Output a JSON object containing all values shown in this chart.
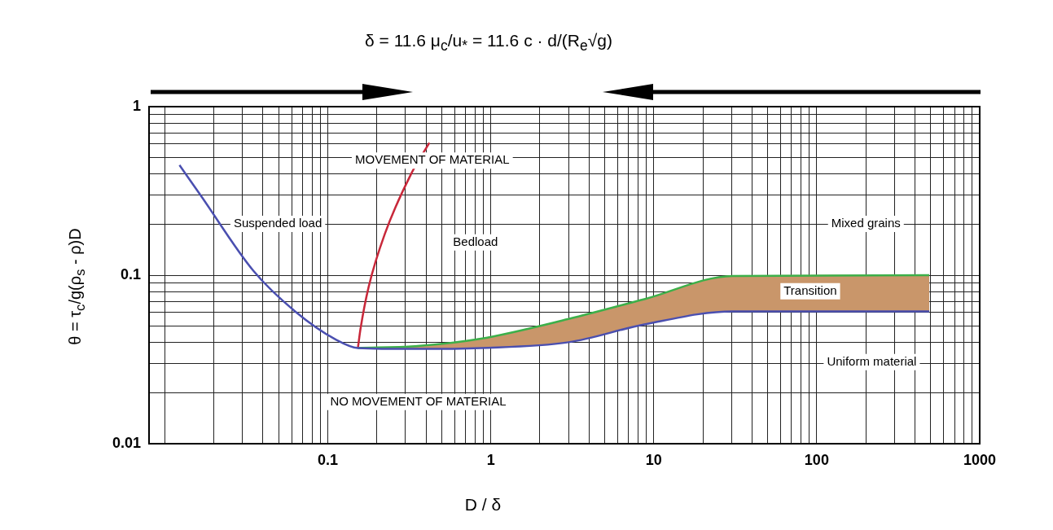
{
  "chart_data": {
    "type": "line",
    "title": "δ = 11.6 μ$_{c}$/u$_{*}$ = 11.6 c · d/(R$_{e}$√g)",
    "xlabel": "D / δ",
    "ylabel": "θ = τ$_{c}$/g(ρ$_{s}$ - ρ)D",
    "log": "xy",
    "grid": true,
    "legend": false,
    "marker": "none",
    "xlim": [
      0.008,
      1000
    ],
    "ylim": [
      0.01,
      1
    ],
    "xticks": [
      {
        "value": 0.01,
        "label": null
      },
      {
        "value": 0.02,
        "label": null
      },
      {
        "value": 0.03,
        "label": null
      },
      {
        "value": 0.04,
        "label": null
      },
      {
        "value": 0.05,
        "label": null
      },
      {
        "value": 0.06,
        "label": null
      },
      {
        "value": 0.07,
        "label": null
      },
      {
        "value": 0.08,
        "label": null
      },
      {
        "value": 0.09,
        "label": null
      },
      0.1,
      {
        "value": 0.2,
        "label": null
      },
      {
        "value": 0.3,
        "label": null
      },
      {
        "value": 0.4,
        "label": null
      },
      {
        "value": 0.5,
        "label": null
      },
      {
        "value": 0.6,
        "label": null
      },
      {
        "value": 0.7,
        "label": null
      },
      {
        "value": 0.8,
        "label": null
      },
      {
        "value": 0.9,
        "label": null
      },
      1,
      {
        "value": 2,
        "label": null
      },
      {
        "value": 3,
        "label": null
      },
      {
        "value": 4,
        "label": null
      },
      {
        "value": 5,
        "label": null
      },
      {
        "value": 6,
        "label": null
      },
      {
        "value": 7,
        "label": null
      },
      {
        "value": 8,
        "label": null
      },
      {
        "value": 9,
        "label": null
      },
      10,
      {
        "value": 20,
        "label": null
      },
      {
        "value": 30,
        "label": null
      },
      {
        "value": 40,
        "label": null
      },
      {
        "value": 50,
        "label": null
      },
      {
        "value": 60,
        "label": null
      },
      {
        "value": 70,
        "label": null
      },
      {
        "value": 80,
        "label": null
      },
      {
        "value": 90,
        "label": null
      },
      100,
      {
        "value": 200,
        "label": null
      },
      {
        "value": 300,
        "label": null
      },
      {
        "value": 400,
        "label": null
      },
      {
        "value": 500,
        "label": null
      },
      {
        "value": 600,
        "label": null
      },
      {
        "value": 700,
        "label": null
      },
      {
        "value": 800,
        "label": null
      },
      {
        "value": 900,
        "label": null
      },
      1000
    ],
    "yticks": [
      0.01,
      {
        "value": 0.02,
        "label": null
      },
      {
        "value": 0.03,
        "label": null
      },
      {
        "value": 0.04,
        "label": null
      },
      {
        "value": 0.05,
        "label": null
      },
      {
        "value": 0.06,
        "label": null
      },
      {
        "value": 0.07,
        "label": null
      },
      {
        "value": 0.08,
        "label": null
      },
      {
        "value": 0.09,
        "label": null
      },
      0.1,
      {
        "value": 0.2,
        "label": null
      },
      {
        "value": 0.3,
        "label": null
      },
      {
        "value": 0.4,
        "label": null
      },
      {
        "value": 0.5,
        "label": null
      },
      {
        "value": 0.6,
        "label": null
      },
      {
        "value": 0.7,
        "label": null
      },
      {
        "value": 0.8,
        "label": null
      },
      {
        "value": 0.9,
        "label": null
      },
      1
    ],
    "series": [
      {
        "type": "line",
        "color": "#4a4fb0",
        "x": [
          0.0123,
          0.0165,
          0.035,
          0.063,
          0.112,
          0.153,
          0.356,
          0.87,
          3.0,
          8.75,
          30.5,
          490
        ],
        "values": [
          0.45,
          0.3,
          0.106,
          0.061,
          0.0415,
          0.037,
          0.0365,
          0.037,
          0.04,
          0.051,
          0.061,
          0.061
        ]
      },
      {
        "type": "area",
        "color": "#c9966a",
        "x": [
          0.153,
          0.356,
          0.87,
          3.0,
          8.75,
          30.5,
          490
        ],
        "values": [
          0.037,
          0.038,
          0.042,
          0.055,
          0.072,
          0.099,
          0.1
        ]
      },
      {
        "type": "line",
        "color": "#3cb04a",
        "x": [
          0.153,
          0.356,
          0.87,
          3.0,
          8.75,
          30.5,
          490
        ],
        "values": [
          0.037,
          0.038,
          0.042,
          0.055,
          0.072,
          0.099,
          0.1
        ]
      },
      {
        "type": "line",
        "color": "#c8283a",
        "x": [
          0.153,
          0.159,
          0.178,
          0.224,
          0.325,
          0.42
        ],
        "values": [
          0.037,
          0.0485,
          0.085,
          0.176,
          0.4,
          0.61
        ]
      }
    ],
    "annotations": [
      "MOVEMENT OF MATERIAL",
      "Suspended load",
      "Bedload",
      "Mixed grains",
      "Transition",
      "Uniform material",
      "NO MOVEMENT OF MATERIAL"
    ]
  }
}
